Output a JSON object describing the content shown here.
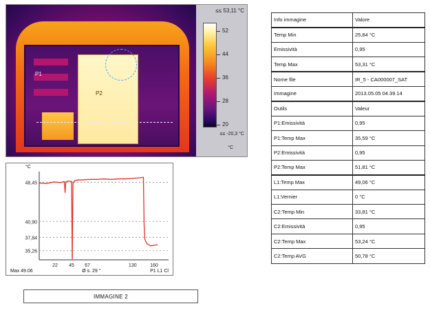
{
  "thermal": {
    "max_label": "≤≤ 53,11 °C",
    "min_label": "≤≤ -20,3 °C",
    "unit": "°C",
    "scale_ticks": [
      "52",
      "44",
      "36",
      "28",
      "20"
    ],
    "marker_p1": "P1",
    "marker_p2": "P2"
  },
  "chart": {
    "y_unit": "°C",
    "footer_max": "Max 49.06",
    "footer_marker": "Ø s. 29 °",
    "footer_right": "P1 L1 Cl",
    "chart_data": {
      "type": "line",
      "xlabel": "",
      "ylabel": "°C",
      "x_ticks": [
        "22",
        "45",
        "67",
        "130",
        "160"
      ],
      "y_ticks": [
        "48,45",
        "40,90",
        "37,84",
        "35,26"
      ],
      "ylim": [
        33.5,
        50.5
      ],
      "xlim": [
        0,
        180
      ],
      "series": [
        {
          "x": [
            0,
            10,
            20,
            30,
            35,
            36,
            37,
            40,
            45,
            46,
            47,
            50,
            55,
            60,
            70,
            80,
            90,
            100,
            110,
            120,
            130,
            140,
            145,
            146,
            147,
            150,
            155,
            160,
            165
          ],
          "values": [
            48.3,
            48.2,
            48.5,
            48.4,
            48.6,
            46.4,
            48.5,
            48.7,
            48.6,
            33.9,
            48.4,
            48.8,
            48.9,
            48.9,
            49.0,
            49.0,
            49.1,
            49.0,
            49.1,
            49.1,
            49.2,
            49.3,
            49.4,
            40.3,
            37.4,
            36.6,
            36.2,
            36.3,
            36.4
          ]
        }
      ]
    }
  },
  "caption": "IMMAGINE 2",
  "table": {
    "rows": [
      {
        "key": "Info immagine",
        "value": "Valore"
      },
      {
        "key": "Temp Min",
        "value": "25,84 °C"
      },
      {
        "key": "Emissività",
        "value": "0,95"
      },
      {
        "key": "Temp Max",
        "value": "53,31 °C"
      },
      {
        "key": "Nome file",
        "value": "IR_5 - CA000007_SAT"
      },
      {
        "key": "Immagine",
        "value": "2013.05.05 04.39.14"
      },
      {
        "key": "Outils",
        "value": "Valeur"
      },
      {
        "key": "P1:Emissività",
        "value": "0,95"
      },
      {
        "key": "P1:Temp Max",
        "value": "35,59 °C"
      },
      {
        "key": "P2:Emissività",
        "value": "0,95"
      },
      {
        "key": "P2:Temp Max",
        "value": "51,81 °C"
      },
      {
        "key": "L1:Temp Max",
        "value": "49,06 °C"
      },
      {
        "key": "L1:Vernier",
        "value": "0 °C"
      },
      {
        "key": "C2:Temp Min",
        "value": "33,81 °C"
      },
      {
        "key": "C2:Emissività",
        "value": "0,95"
      },
      {
        "key": "C2:Temp Max",
        "value": "53,24 °C"
      },
      {
        "key": "C2:Temp AVG",
        "value": "50,78 °C"
      }
    ],
    "thick_rows": [
      1,
      4,
      6,
      11
    ]
  }
}
